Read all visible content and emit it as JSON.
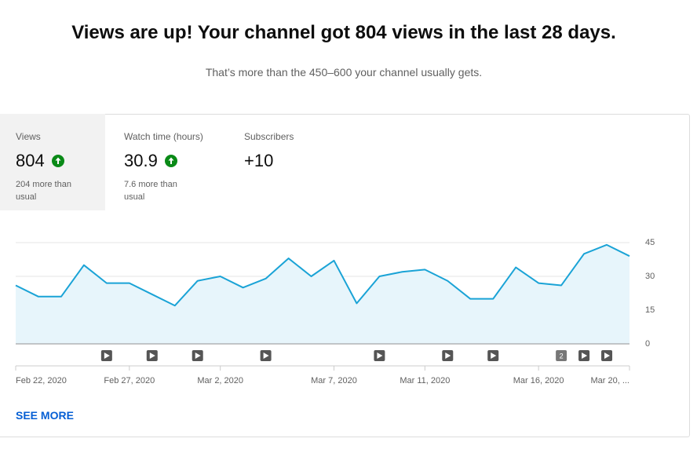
{
  "header": {
    "title": "Views are up! Your channel got 804 views in the last 28 days.",
    "subtitle": "That’s more than the 450–600 your channel usually gets."
  },
  "metrics": [
    {
      "label": "Views",
      "value": "804",
      "trend": "up",
      "note": "204 more than usual",
      "selected": true
    },
    {
      "label": "Watch time (hours)",
      "value": "30.9",
      "trend": "up",
      "note": "7.6 more than usual",
      "selected": false
    },
    {
      "label": "Subscribers",
      "value": "+10",
      "selected": false
    }
  ],
  "chart_data": {
    "type": "area",
    "categories": [
      "Feb 22, 2020",
      null,
      null,
      null,
      null,
      "Feb 27, 2020",
      null,
      null,
      null,
      "Mar 2, 2020",
      null,
      null,
      null,
      null,
      "Mar 7, 2020",
      null,
      null,
      null,
      "Mar 11, 2020",
      null,
      null,
      null,
      null,
      "Mar 16, 2020",
      null,
      null,
      null,
      "Mar 20, ..."
    ],
    "values": [
      26,
      21,
      21,
      35,
      27,
      27,
      22,
      17,
      28,
      30,
      25,
      29,
      38,
      30,
      37,
      18,
      30,
      32,
      33,
      28,
      20,
      20,
      34,
      27,
      26,
      40,
      44,
      39
    ],
    "video_counts": [
      null,
      null,
      null,
      null,
      1,
      null,
      1,
      null,
      1,
      null,
      null,
      1,
      null,
      null,
      null,
      null,
      1,
      null,
      null,
      1,
      null,
      1,
      null,
      null,
      2,
      1,
      1,
      null
    ],
    "color": "#1aa3d6",
    "fill": "#e7f5fb",
    "ylim": [
      0,
      45
    ],
    "yticks": [
      0,
      15,
      30,
      45
    ],
    "grid": true
  },
  "footer": {
    "link": "SEE MORE"
  }
}
